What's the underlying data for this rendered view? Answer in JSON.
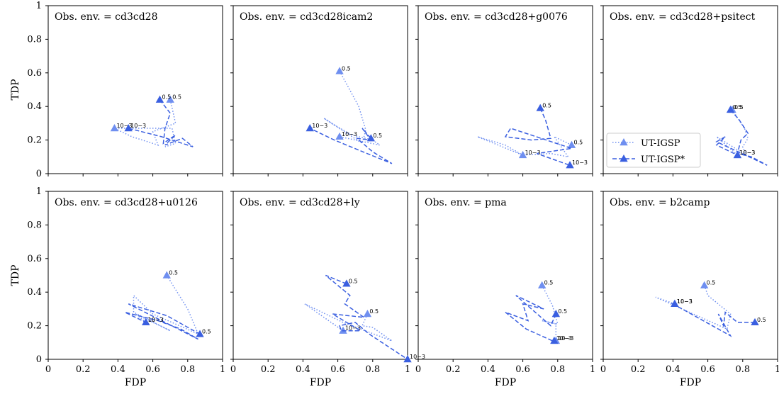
{
  "colors": {
    "ut_igsp": "#6f8ff0",
    "ut_igsp_star": "#3a5fe0"
  },
  "legend": {
    "items": [
      "UT-IGSP",
      "UT-IGSP*"
    ],
    "placement": "panel-4-lower-left"
  },
  "chart_data": [
    {
      "type": "line",
      "title": "Obs. env. = cd3cd28",
      "xlabel": "",
      "ylabel": "TDP",
      "xlim": [
        0,
        1
      ],
      "ylim": [
        0,
        1
      ],
      "series": [
        {
          "name": "UT-IGSP",
          "style": "dotted",
          "x": [
            0.7,
            0.73,
            0.6,
            0.63,
            0.48,
            0.38,
            0.71,
            0.73,
            0.67
          ],
          "y": [
            0.44,
            0.3,
            0.25,
            0.17,
            0.22,
            0.27,
            0.27,
            0.18,
            0.16
          ],
          "markers": [
            {
              "x": 0.7,
              "y": 0.44,
              "label": "0.5"
            },
            {
              "x": 0.38,
              "y": 0.27,
              "label": "10−3"
            }
          ]
        },
        {
          "name": "UT-IGSP*",
          "style": "dashed",
          "x": [
            0.64,
            0.7,
            0.67,
            0.66,
            0.73,
            0.67,
            0.77,
            0.83,
            0.65,
            0.46
          ],
          "y": [
            0.44,
            0.36,
            0.27,
            0.18,
            0.23,
            0.17,
            0.21,
            0.16,
            0.22,
            0.27
          ],
          "markers": [
            {
              "x": 0.64,
              "y": 0.44,
              "label": "0.5"
            },
            {
              "x": 0.46,
              "y": 0.27,
              "label": "10−3"
            }
          ]
        }
      ]
    },
    {
      "type": "line",
      "title": "Obs. env. = cd3cd28icam2",
      "xlim": [
        0,
        1
      ],
      "ylim": [
        0,
        1
      ],
      "series": [
        {
          "name": "UT-IGSP",
          "style": "dotted",
          "x": [
            0.61,
            0.72,
            0.76,
            0.74,
            0.52,
            0.58,
            0.68,
            0.8,
            0.84,
            0.61
          ],
          "y": [
            0.61,
            0.4,
            0.26,
            0.18,
            0.33,
            0.29,
            0.23,
            0.2,
            0.17,
            0.22
          ],
          "markers": [
            {
              "x": 0.61,
              "y": 0.61,
              "label": "0.5"
            },
            {
              "x": 0.61,
              "y": 0.22,
              "label": "10−3"
            }
          ]
        },
        {
          "name": "UT-IGSP*",
          "style": "dashed",
          "x": [
            0.79,
            0.74,
            0.79,
            0.71,
            0.8,
            0.91,
            0.72,
            0.58,
            0.44
          ],
          "y": [
            0.21,
            0.27,
            0.2,
            0.21,
            0.13,
            0.06,
            0.14,
            0.2,
            0.27
          ],
          "markers": [
            {
              "x": 0.79,
              "y": 0.21,
              "label": "0.5"
            },
            {
              "x": 0.44,
              "y": 0.27,
              "label": "10−3"
            }
          ]
        }
      ]
    },
    {
      "type": "line",
      "title": "Obs. env. = cd3cd28+g0076",
      "xlim": [
        0,
        1
      ],
      "ylim": [
        0,
        1
      ],
      "series": [
        {
          "name": "UT-IGSP",
          "style": "dotted",
          "x": [
            0.88,
            0.78,
            0.86,
            0.76,
            0.6,
            0.34,
            0.5,
            0.6
          ],
          "y": [
            0.17,
            0.22,
            0.1,
            0.12,
            0.11,
            0.22,
            0.17,
            0.11
          ],
          "markers": [
            {
              "x": 0.88,
              "y": 0.17,
              "label": "0.5"
            },
            {
              "x": 0.6,
              "y": 0.11,
              "label": "10−3"
            }
          ]
        },
        {
          "name": "UT-IGSP*",
          "style": "dashed",
          "x": [
            0.7,
            0.73,
            0.76,
            0.65,
            0.5,
            0.53,
            0.88,
            0.68,
            0.87
          ],
          "y": [
            0.39,
            0.32,
            0.21,
            0.2,
            0.22,
            0.27,
            0.15,
            0.12,
            0.05
          ],
          "markers": [
            {
              "x": 0.7,
              "y": 0.39,
              "label": "0.5"
            },
            {
              "x": 0.87,
              "y": 0.05,
              "label": "10−3"
            }
          ]
        }
      ]
    },
    {
      "type": "line",
      "title": "Obs. env. = cd3cd28+psitect",
      "xlim": [
        0,
        1
      ],
      "ylim": [
        0,
        1
      ],
      "series": [
        {
          "name": "UT-IGSP",
          "style": "dotted",
          "x": [
            0.74,
            0.81,
            0.83,
            0.8,
            0.82,
            0.65,
            0.77
          ],
          "y": [
            0.38,
            0.27,
            0.21,
            0.16,
            0.11,
            0.22,
            0.11
          ],
          "markers": [
            {
              "x": 0.74,
              "y": 0.38,
              "label": "0.5"
            },
            {
              "x": 0.77,
              "y": 0.11,
              "label": "10−3"
            }
          ]
        },
        {
          "name": "UT-IGSP*",
          "style": "dashed",
          "x": [
            0.73,
            0.78,
            0.83,
            0.79,
            0.77,
            0.85,
            0.94,
            0.65,
            0.7,
            0.65,
            0.77
          ],
          "y": [
            0.38,
            0.32,
            0.24,
            0.2,
            0.12,
            0.1,
            0.05,
            0.19,
            0.22,
            0.17,
            0.11
          ],
          "markers": [
            {
              "x": 0.73,
              "y": 0.38,
              "label": "0.5"
            },
            {
              "x": 0.77,
              "y": 0.11,
              "label": "10−3"
            }
          ]
        }
      ]
    },
    {
      "type": "line",
      "title": "Obs. env. = cd3cd28+u0126",
      "xlabel": "FDP",
      "ylabel": "TDP",
      "xlim": [
        0,
        1
      ],
      "ylim": [
        0,
        1
      ],
      "series": [
        {
          "name": "UT-IGSP",
          "style": "dotted",
          "x": [
            0.68,
            0.8,
            0.86,
            0.6,
            0.49,
            0.49,
            0.7,
            0.5,
            0.56
          ],
          "y": [
            0.5,
            0.3,
            0.15,
            0.27,
            0.38,
            0.28,
            0.17,
            0.27,
            0.22
          ],
          "markers": [
            {
              "x": 0.68,
              "y": 0.5,
              "label": "0.5"
            },
            {
              "x": 0.56,
              "y": 0.22,
              "label": "10−3"
            }
          ]
        },
        {
          "name": "UT-IGSP*",
          "style": "dashed",
          "x": [
            0.87,
            0.68,
            0.46,
            0.86,
            0.76,
            0.63,
            0.44,
            0.56
          ],
          "y": [
            0.15,
            0.26,
            0.33,
            0.12,
            0.18,
            0.23,
            0.28,
            0.22
          ],
          "markers": [
            {
              "x": 0.87,
              "y": 0.15,
              "label": "0.5"
            },
            {
              "x": 0.56,
              "y": 0.22,
              "label": "10−3"
            }
          ]
        }
      ]
    },
    {
      "type": "line",
      "title": "Obs. env. = cd3cd28+ly",
      "xlabel": "FDP",
      "xlim": [
        0,
        1
      ],
      "ylim": [
        0,
        1
      ],
      "series": [
        {
          "name": "UT-IGSP",
          "style": "dotted",
          "x": [
            0.77,
            0.74,
            0.8,
            0.91,
            0.63,
            0.41,
            0.63
          ],
          "y": [
            0.27,
            0.2,
            0.19,
            0.11,
            0.22,
            0.33,
            0.17
          ],
          "markers": [
            {
              "x": 0.77,
              "y": 0.27,
              "label": "0.5"
            },
            {
              "x": 0.63,
              "y": 0.17,
              "label": "10−3"
            }
          ]
        },
        {
          "name": "UT-IGSP*",
          "style": "dashed",
          "x": [
            0.65,
            0.53,
            0.67,
            0.64,
            0.75,
            0.57,
            0.73,
            0.62,
            0.61,
            0.7,
            0.78,
            1.0
          ],
          "y": [
            0.45,
            0.5,
            0.38,
            0.33,
            0.25,
            0.27,
            0.17,
            0.17,
            0.2,
            0.22,
            0.15,
            0.0
          ],
          "markers": [
            {
              "x": 0.65,
              "y": 0.45,
              "label": "0.5"
            },
            {
              "x": 1.0,
              "y": 0.0,
              "label": "10−3"
            }
          ]
        }
      ]
    },
    {
      "type": "line",
      "title": "Obs. env. = pma",
      "xlabel": "FDP",
      "xlim": [
        0,
        1
      ],
      "ylim": [
        0,
        1
      ],
      "series": [
        {
          "name": "UT-IGSP",
          "style": "dotted",
          "x": [
            0.71,
            0.77,
            0.8,
            0.71,
            0.79,
            0.79
          ],
          "y": [
            0.44,
            0.32,
            0.21,
            0.23,
            0.21,
            0.11
          ],
          "markers": [
            {
              "x": 0.71,
              "y": 0.44,
              "label": "0.5"
            },
            {
              "x": 0.79,
              "y": 0.11,
              "label": "10−3"
            }
          ]
        },
        {
          "name": "UT-IGSP*",
          "style": "dashed",
          "x": [
            0.79,
            0.76,
            0.56,
            0.72,
            0.6,
            0.63,
            0.5,
            0.62,
            0.77,
            0.79
          ],
          "y": [
            0.27,
            0.2,
            0.38,
            0.3,
            0.33,
            0.23,
            0.28,
            0.18,
            0.11,
            0.11
          ],
          "markers": [
            {
              "x": 0.79,
              "y": 0.27,
              "label": "0.5"
            },
            {
              "x": 0.78,
              "y": 0.11,
              "label": "10−3"
            }
          ]
        }
      ]
    },
    {
      "type": "line",
      "title": "Obs. env. = b2camp",
      "xlabel": "FDP",
      "xlim": [
        0,
        1
      ],
      "ylim": [
        0,
        1
      ],
      "series": [
        {
          "name": "UT-IGSP",
          "style": "dotted",
          "x": [
            0.58,
            0.6,
            0.73,
            0.71,
            0.3,
            0.41
          ],
          "y": [
            0.44,
            0.38,
            0.27,
            0.18,
            0.37,
            0.33
          ],
          "markers": [
            {
              "x": 0.58,
              "y": 0.44,
              "label": "0.5"
            },
            {
              "x": 0.41,
              "y": 0.33,
              "label": "10−3"
            }
          ]
        },
        {
          "name": "UT-IGSP*",
          "style": "dashed",
          "x": [
            0.87,
            0.77,
            0.7,
            0.69,
            0.66,
            0.73,
            0.4,
            0.41
          ],
          "y": [
            0.22,
            0.22,
            0.28,
            0.2,
            0.27,
            0.14,
            0.33,
            0.33
          ],
          "markers": [
            {
              "x": 0.87,
              "y": 0.22,
              "label": "0.5"
            },
            {
              "x": 0.41,
              "y": 0.33,
              "label": "10−3"
            }
          ]
        }
      ]
    }
  ],
  "axes": {
    "x_ticks": [
      "0",
      "0.2",
      "0.4",
      "0.6",
      "0.8",
      "1"
    ],
    "y_ticks": [
      "0",
      "0.2",
      "0.4",
      "0.6",
      "0.8",
      "1"
    ],
    "xlabel": "FDP",
    "ylabel": "TDP"
  }
}
